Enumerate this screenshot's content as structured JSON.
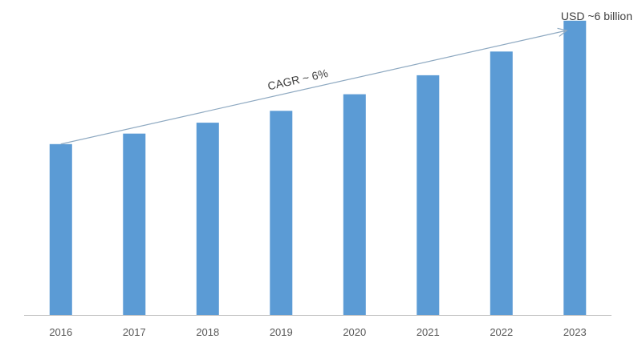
{
  "chart_data": {
    "type": "bar",
    "title": "",
    "xlabel": "",
    "ylabel": "",
    "categories": [
      "2016",
      "2017",
      "2018",
      "2019",
      "2020",
      "2021",
      "2022",
      "2023"
    ],
    "values": [
      3.6,
      3.82,
      4.05,
      4.3,
      4.65,
      5.05,
      5.55,
      6.2
    ],
    "ylim": [
      0,
      6.5
    ],
    "grid": false,
    "legend": "none",
    "bar_color": "#5B9BD5",
    "axis_color": "#BFBFBF",
    "arrow_color": "#8EA9C1",
    "annotations": {
      "cagr": "CAGR ~ 6%",
      "end_value": "USD ~6 billion"
    }
  }
}
